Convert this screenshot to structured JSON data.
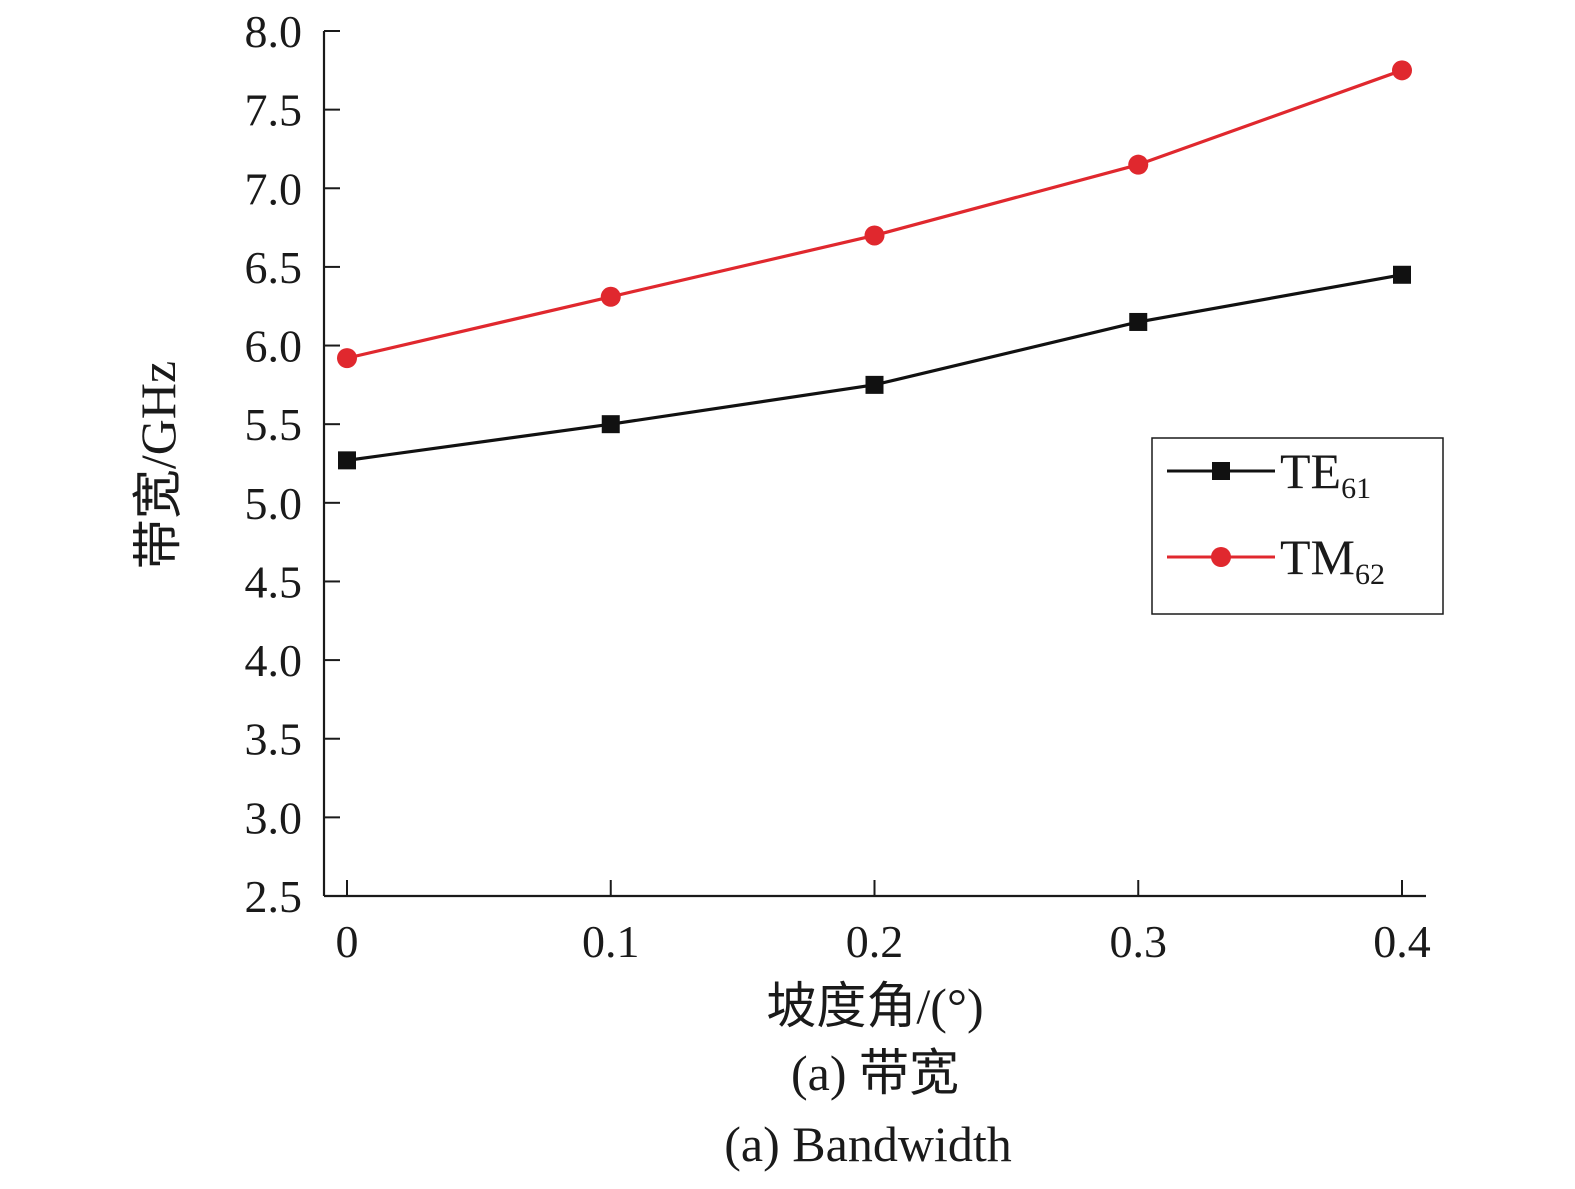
{
  "chart_data": {
    "type": "line",
    "x": [
      0,
      0.1,
      0.2,
      0.3,
      0.4
    ],
    "x_tick_labels": [
      "0",
      "0.1",
      "0.2",
      "0.3",
      "0.4"
    ],
    "y_tick_labels": [
      "2.5",
      "3.0",
      "3.5",
      "4.0",
      "4.5",
      "5.0",
      "5.5",
      "6.0",
      "6.5",
      "7.0",
      "7.5",
      "8.0"
    ],
    "ylim": [
      2.5,
      8.0
    ],
    "xlabel": "坡度角/(°)",
    "ylabel": "带宽/GHz",
    "grid": false,
    "legend_position": "right",
    "series": [
      {
        "name_base": "TE",
        "name_sub": "61",
        "color": "#111111",
        "marker": "square",
        "values": [
          5.27,
          5.5,
          5.75,
          6.15,
          6.45
        ]
      },
      {
        "name_base": "TM",
        "name_sub": "62",
        "color": "#e0282e",
        "marker": "circle",
        "values": [
          5.92,
          6.31,
          6.7,
          7.15,
          7.75
        ]
      }
    ]
  },
  "captions": {
    "zh": "(a) 带宽",
    "en": "(a) Bandwidth"
  }
}
